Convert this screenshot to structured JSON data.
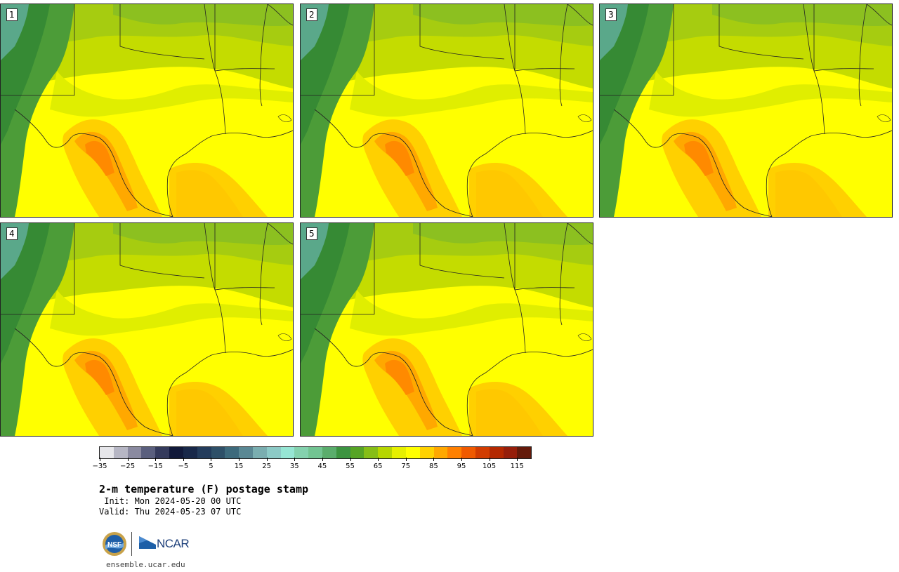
{
  "panels": [
    {
      "label": "1"
    },
    {
      "label": "2"
    },
    {
      "label": "3"
    },
    {
      "label": "4"
    },
    {
      "label": "5"
    }
  ],
  "colorbar": {
    "colors": [
      "#e6e6ea",
      "#b6b6c4",
      "#8a8aa0",
      "#5a5f7e",
      "#343a5c",
      "#11193a",
      "#182849",
      "#233c5c",
      "#2e5068",
      "#3d6a7c",
      "#5a8894",
      "#7aaeb0",
      "#8ccac6",
      "#96e6d4",
      "#84d2ae",
      "#72c492",
      "#5aad6c",
      "#3c9440",
      "#56a424",
      "#86be16",
      "#b6d600",
      "#e6f000",
      "#ffff00",
      "#ffd200",
      "#ffa800",
      "#ff8000",
      "#f05a00",
      "#d23c00",
      "#b42800",
      "#961e0a",
      "#641a0a"
    ],
    "tick_labels": [
      "−35",
      "−25",
      "−15",
      "−5",
      "5",
      "15",
      "25",
      "35",
      "45",
      "55",
      "65",
      "75",
      "85",
      "95",
      "105",
      "115"
    ]
  },
  "title": "2-m temperature (F) postage stamp",
  "init_line": " Init: Mon 2024-05-20 00 UTC",
  "valid_line": "Valid: Thu 2024-05-23 07 UTC",
  "logos": {
    "nsf_text": "NSF",
    "ncar_text": "NCAR"
  },
  "url": "ensemble.ucar.edu"
}
